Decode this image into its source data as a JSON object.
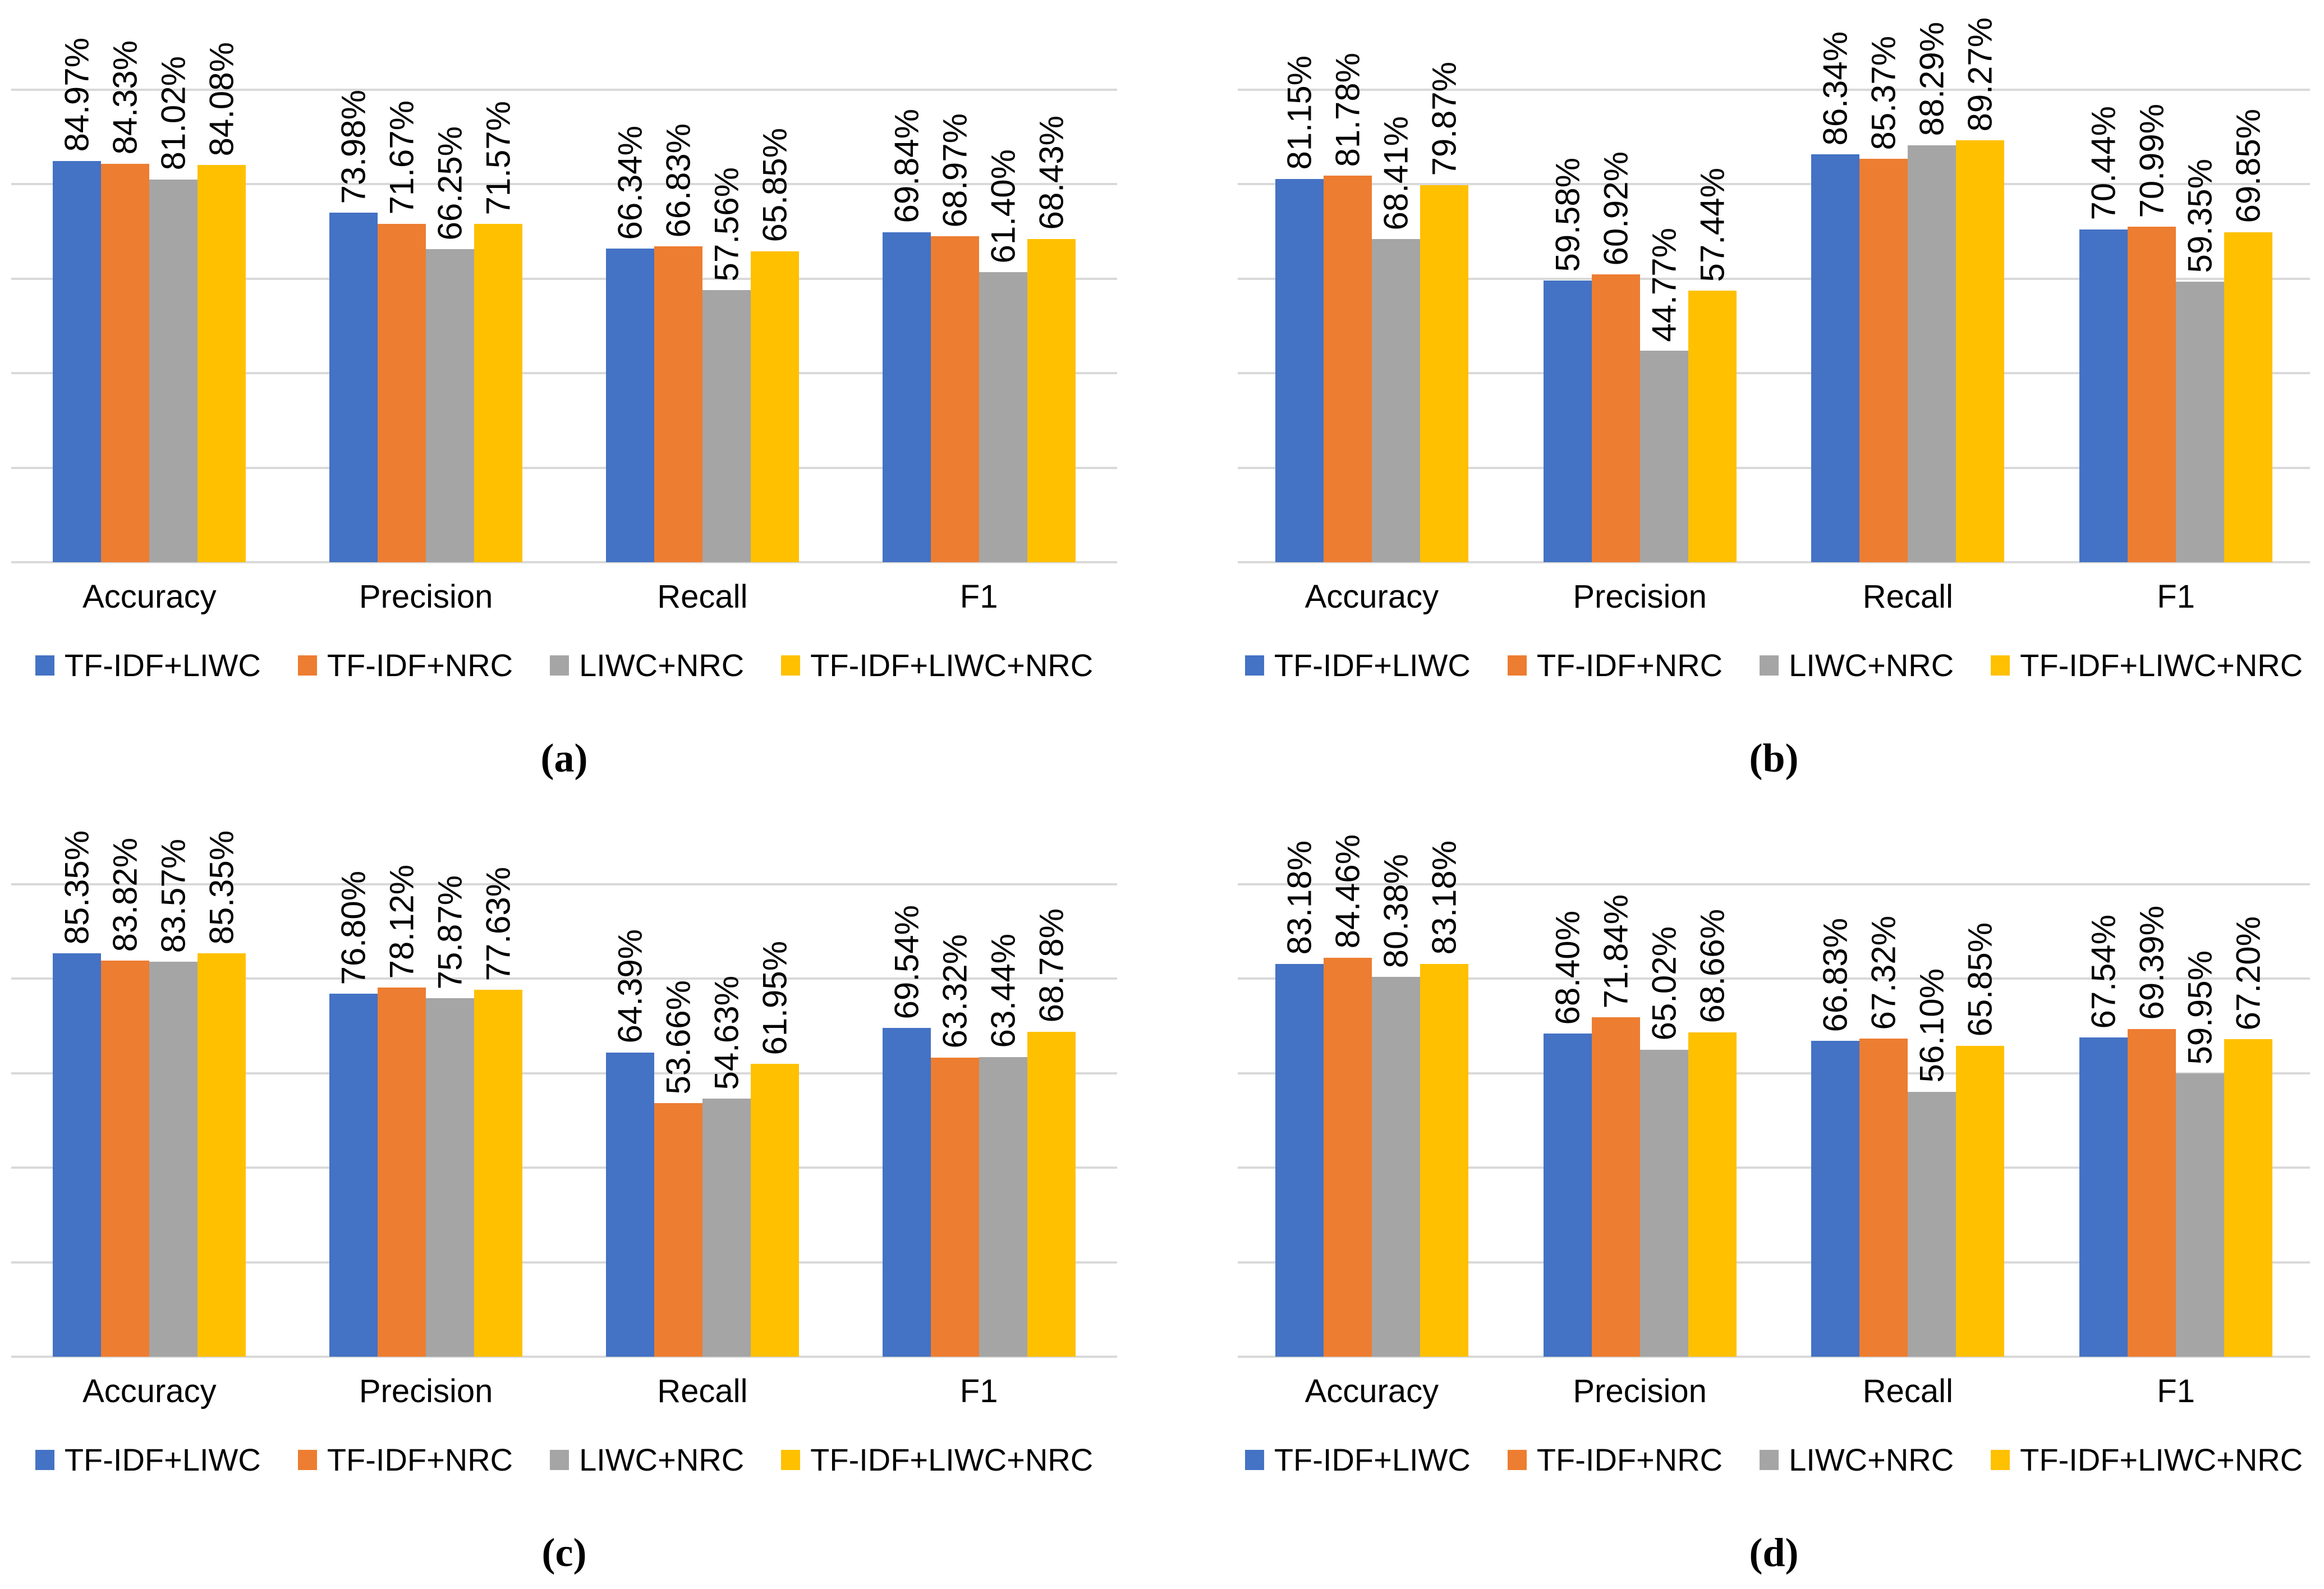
{
  "figure_series": [
    {
      "name": "TF-IDF+LIWC",
      "color": "#4472C4"
    },
    {
      "name": "TF-IDF+NRC",
      "color": "#ED7D31"
    },
    {
      "name": "LIWC+NRC",
      "color": "#A5A5A5"
    },
    {
      "name": "TF-IDF+LIWC+NRC",
      "color": "#FFC000"
    }
  ],
  "style": {
    "grid_color": "#D9D9D9",
    "label_suffix": "%",
    "label_decimals": 2
  },
  "chart_data": [
    {
      "id": "a",
      "caption": "(a)",
      "type": "bar",
      "categories": [
        "Accuracy",
        "Precision",
        "Recall",
        "F1"
      ],
      "series": [
        {
          "name": "TF-IDF+LIWC",
          "values": [
            84.97,
            73.98,
            66.34,
            69.84
          ]
        },
        {
          "name": "TF-IDF+NRC",
          "values": [
            84.33,
            71.67,
            66.83,
            68.97
          ]
        },
        {
          "name": "LIWC+NRC",
          "values": [
            81.02,
            66.25,
            57.56,
            61.4
          ]
        },
        {
          "name": "TF-IDF+LIWC+NRC",
          "values": [
            84.08,
            71.57,
            65.85,
            68.43
          ]
        }
      ],
      "ylim": [
        0,
        100
      ],
      "gridline_step": 20,
      "grid": true,
      "legend_position": "bottom",
      "data_labels": "rotated-90-percent"
    },
    {
      "id": "b",
      "caption": "(b)",
      "type": "bar",
      "categories": [
        "Accuracy",
        "Precision",
        "Recall",
        "F1"
      ],
      "series": [
        {
          "name": "TF-IDF+LIWC",
          "values": [
            81.15,
            59.58,
            86.34,
            70.44
          ]
        },
        {
          "name": "TF-IDF+NRC",
          "values": [
            81.78,
            60.92,
            85.37,
            70.99
          ]
        },
        {
          "name": "LIWC+NRC",
          "values": [
            68.41,
            44.77,
            88.29,
            59.35
          ]
        },
        {
          "name": "TF-IDF+LIWC+NRC",
          "values": [
            79.87,
            57.44,
            89.27,
            69.85
          ]
        }
      ],
      "ylim": [
        0,
        100
      ],
      "gridline_step": 20,
      "grid": true,
      "legend_position": "bottom",
      "data_labels": "rotated-90-percent"
    },
    {
      "id": "c",
      "caption": "(c)",
      "type": "bar",
      "categories": [
        "Accuracy",
        "Precision",
        "Recall",
        "F1"
      ],
      "series": [
        {
          "name": "TF-IDF+LIWC",
          "values": [
            85.35,
            76.8,
            64.39,
            69.54
          ]
        },
        {
          "name": "TF-IDF+NRC",
          "values": [
            83.82,
            78.12,
            53.66,
            63.32
          ]
        },
        {
          "name": "LIWC+NRC",
          "values": [
            83.57,
            75.87,
            54.63,
            63.44
          ]
        },
        {
          "name": "TF-IDF+LIWC+NRC",
          "values": [
            85.35,
            77.63,
            61.95,
            68.78
          ]
        }
      ],
      "ylim": [
        0,
        100
      ],
      "gridline_step": 20,
      "grid": true,
      "legend_position": "bottom",
      "data_labels": "rotated-90-percent"
    },
    {
      "id": "d",
      "caption": "(d)",
      "type": "bar",
      "categories": [
        "Accuracy",
        "Precision",
        "Recall",
        "F1"
      ],
      "series": [
        {
          "name": "TF-IDF+LIWC",
          "values": [
            83.18,
            68.4,
            66.83,
            67.54
          ]
        },
        {
          "name": "TF-IDF+NRC",
          "values": [
            84.46,
            71.84,
            67.32,
            69.39
          ]
        },
        {
          "name": "LIWC+NRC",
          "values": [
            80.38,
            65.02,
            56.1,
            59.95
          ]
        },
        {
          "name": "TF-IDF+LIWC+NRC",
          "values": [
            83.18,
            68.66,
            65.85,
            67.2
          ]
        }
      ],
      "ylim": [
        0,
        100
      ],
      "gridline_step": 20,
      "grid": true,
      "legend_position": "bottom",
      "data_labels": "rotated-90-percent"
    }
  ]
}
